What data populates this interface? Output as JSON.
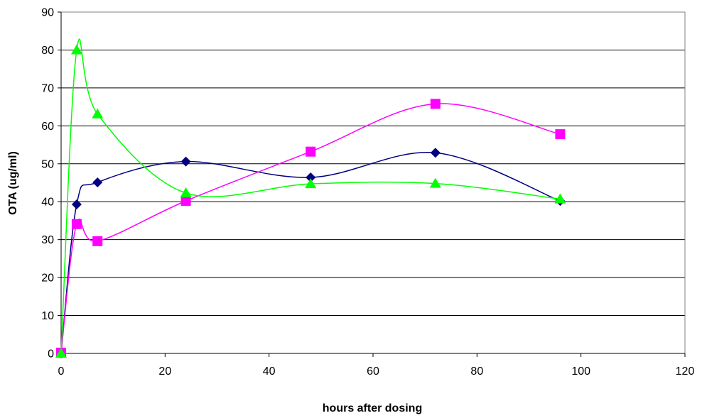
{
  "chart_data": {
    "type": "line",
    "title": "",
    "xlabel": "hours after dosing",
    "ylabel": "OTA (ug/ml)",
    "xlim": [
      0,
      120
    ],
    "ylim": [
      0,
      90
    ],
    "xticks": [
      0,
      20,
      40,
      60,
      80,
      100,
      120
    ],
    "yticks": [
      0,
      10,
      20,
      30,
      40,
      50,
      60,
      70,
      80,
      90
    ],
    "grid": "horizontal",
    "legend": "none",
    "smoothed": true,
    "series": [
      {
        "marker": "diamond",
        "color": "#000080",
        "x": [
          0,
          3,
          7,
          24,
          48,
          72,
          96
        ],
        "y": [
          0,
          39.3,
          45.1,
          50.6,
          46.4,
          52.9,
          40.2
        ]
      },
      {
        "marker": "square",
        "color": "#FF00FF",
        "x": [
          0,
          3,
          7,
          24,
          48,
          72,
          96
        ],
        "y": [
          0.2,
          34.1,
          29.6,
          40.2,
          53.2,
          65.8,
          57.8
        ]
      },
      {
        "marker": "triangle",
        "color": "#00FF00",
        "x": [
          0,
          3,
          7,
          24,
          48,
          72,
          96
        ],
        "y": [
          0,
          80.0,
          63.1,
          42.3,
          44.7,
          44.8,
          40.7
        ]
      }
    ]
  }
}
